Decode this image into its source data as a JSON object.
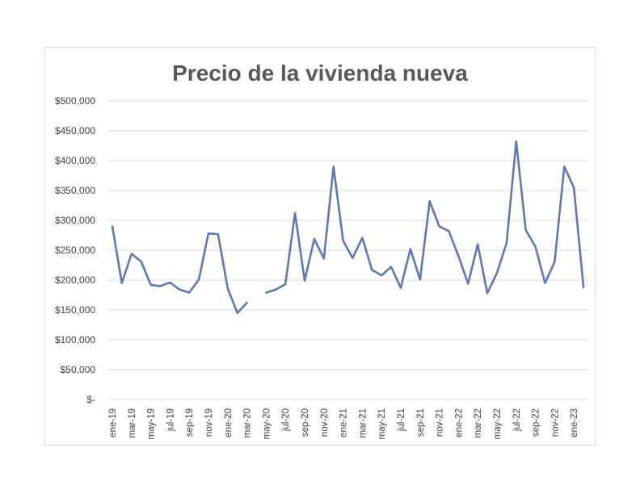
{
  "chart_data": {
    "type": "line",
    "title": "Precio de la vivienda nueva",
    "xlabel": "",
    "ylabel": "",
    "ylim": [
      0,
      500000
    ],
    "y_ticks": [
      0,
      50000,
      100000,
      150000,
      200000,
      250000,
      300000,
      350000,
      400000,
      450000,
      500000
    ],
    "y_tick_labels": [
      "$-",
      "$50,000",
      "$100,000",
      "$150,000",
      "$200,000",
      "$250,000",
      "$300,000",
      "$350,000",
      "$400,000",
      "$450,000",
      "$500,000"
    ],
    "grid": true,
    "legend": "none",
    "line_color": "#5b79b4",
    "categories": [
      "ene-19",
      "feb-19",
      "mar-19",
      "abr-19",
      "may-19",
      "jun-19",
      "jul-19",
      "ago-19",
      "sep-19",
      "oct-19",
      "nov-19",
      "dic-19",
      "ene-20",
      "feb-20",
      "mar-20",
      "abr-20",
      "may-20",
      "jun-20",
      "jul-20",
      "ago-20",
      "sep-20",
      "oct-20",
      "nov-20",
      "dic-20",
      "ene-21",
      "feb-21",
      "mar-21",
      "abr-21",
      "may-21",
      "jun-21",
      "jul-21",
      "ago-21",
      "sep-21",
      "oct-21",
      "nov-21",
      "dic-21",
      "ene-22",
      "feb-22",
      "mar-22",
      "abr-22",
      "may-22",
      "jun-22",
      "jul-22",
      "ago-22",
      "sep-22",
      "oct-22",
      "nov-22",
      "dic-22",
      "ene-23",
      "feb-23"
    ],
    "x_tick_labels": [
      "ene-19",
      "mar-19",
      "may-19",
      "jul-19",
      "sep-19",
      "nov-19",
      "ene-20",
      "mar-20",
      "may-20",
      "jul-20",
      "sep-20",
      "nov-20",
      "ene-21",
      "mar-21",
      "may-21",
      "jul-21",
      "sep-21",
      "nov-21",
      "ene-22",
      "mar-22",
      "may-22",
      "jul-22",
      "sep-22",
      "nov-22",
      "ene-23"
    ],
    "series": [
      {
        "values": [
          290000,
          195000,
          244000,
          231000,
          192000,
          190000,
          196000,
          184000,
          179000,
          201000,
          278000,
          277000,
          186000,
          145000,
          162000,
          null,
          179000,
          184000,
          193000,
          312000,
          199000,
          269000,
          236000,
          390000,
          266000,
          237000,
          271000,
          217000,
          208000,
          222000,
          187000,
          252000,
          201000,
          332000,
          290000,
          282000,
          240000,
          194000,
          260000,
          178000,
          212000,
          262000,
          432000,
          284000,
          256000,
          195000,
          231000,
          390000,
          355000,
          188000
        ]
      }
    ]
  }
}
